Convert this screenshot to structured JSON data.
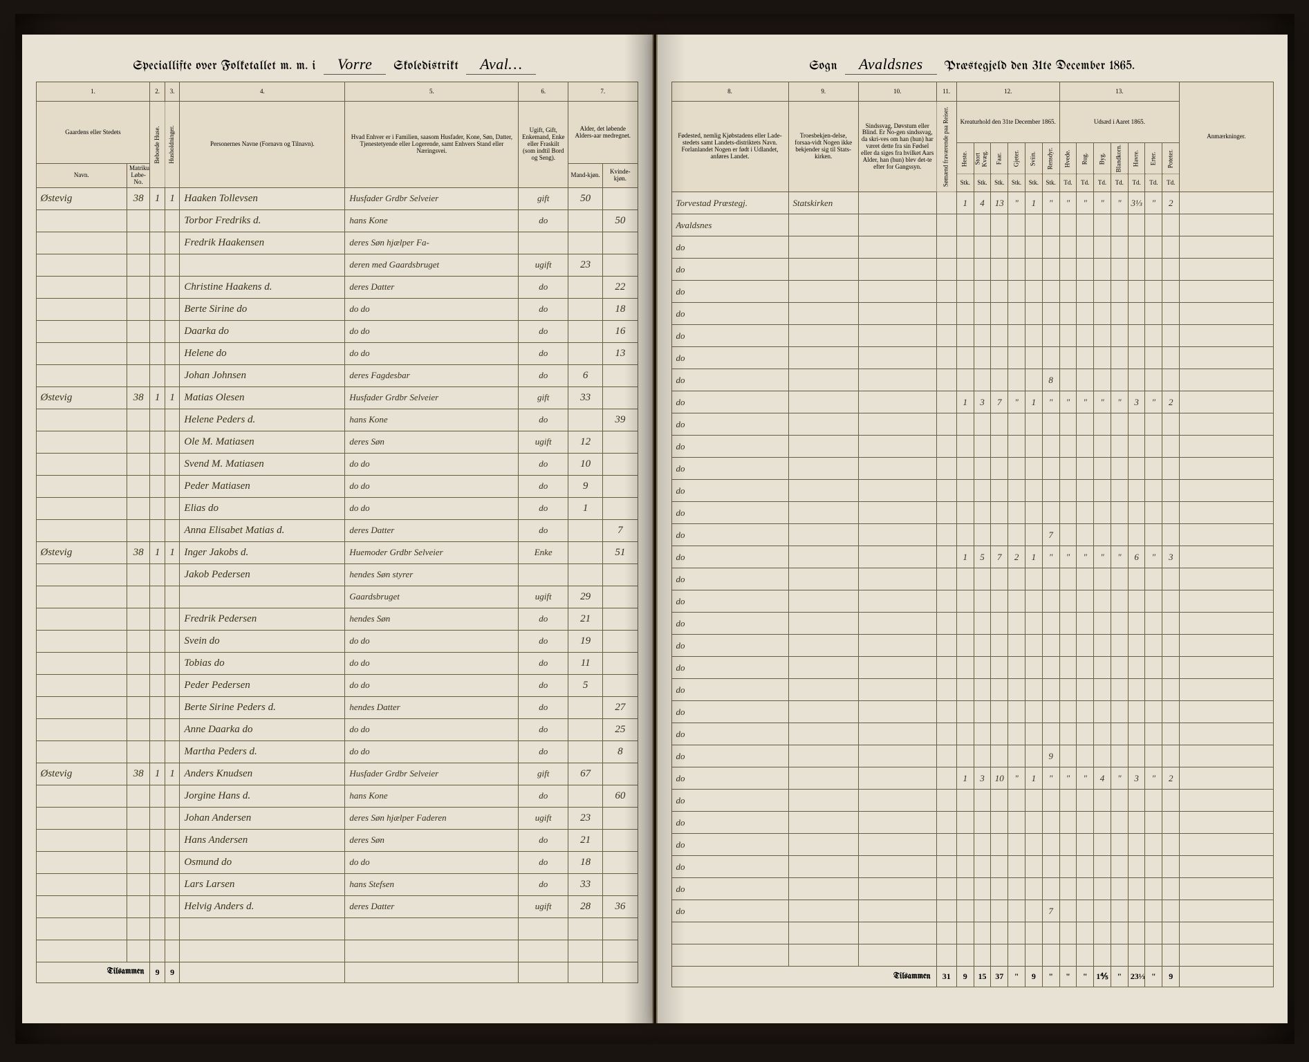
{
  "header": {
    "left_prefix": "Speciallifte over Folketallet m. m. i",
    "district_word": "Skoledistrikt",
    "district_script_left": "Vorre",
    "district_script_mid": "Aval…",
    "sogn_word": "Sogn",
    "sogn_script": "Avaldsnes",
    "right_suffix": "Præstegjeld den 31te December 1865."
  },
  "left_cols": {
    "n1": "1.",
    "n2": "2.",
    "n3": "3.",
    "n4": "4.",
    "n5": "5.",
    "n6": "6.",
    "n7": "7.",
    "h1": "Gaardens eller Stedets",
    "h1a": "Navn.",
    "h1b": "Matrikul-Løbe-No.",
    "h2": "Beboede Huse.",
    "h3": "Husholdninger.",
    "h4": "Personernes Navne (Fornavn og Tilnavn).",
    "h5": "Hvad Enhver er i Familien, saasom Husfader, Kone, Søn, Datter, Tjenestetyende eller Logerende, samt Enhvers Stand eller Næringsvei.",
    "h6": "Ugift, Gift, Enkemand, Enke eller Fraskilt (som indtil Bord og Seng).",
    "h7": "Alder, det løbende Alders-aar medregnet.",
    "h7a": "Mand-kjøn.",
    "h7b": "Kvinde-kjøn."
  },
  "right_cols": {
    "n8": "8.",
    "n9": "9.",
    "n10": "10.",
    "n11": "11.",
    "n12": "12.",
    "n13": "13.",
    "h8": "Fødested, nemlig Kjøbstadens eller Lade-stedets samt Landets-distriktets Navn. Forlanlandet Nogen er født i Udlandet, anføres Landet.",
    "h9": "Troesbekjen-delse, forsaa-vidt Nogen ikke bekjender sig til Stats-kirken.",
    "h10": "Sindssvag, Døvstum eller Blind. Er No-gen sindssvag, da skri-ves om han (hun) har været dette fra sin Fødsel eller da siges fra hvilket Aars Alder, han (hun) blev det-te efter for Gangssyn.",
    "h11": "Sømænd fraværende paa Reiser.",
    "h12": "Kreaturhold den 31te December 1865.",
    "h13": "Udsæd i Aaret 1865.",
    "hA": "Anmærkninger.",
    "k12": [
      "Heste.",
      "Stort Kvæg.",
      "Faar.",
      "Gjeter.",
      "Sviin.",
      "Rensdyr."
    ],
    "k12u": [
      "Stk.",
      "Stk.",
      "Stk.",
      "Stk.",
      "Stk.",
      "Stk."
    ],
    "k13": [
      "Hvede.",
      "Rug.",
      "Byg.",
      "Blandkorn.",
      "Havre.",
      "Erter.",
      "Poteter."
    ],
    "k13u": [
      "Td.",
      "Td.",
      "Td.",
      "Td.",
      "Td.",
      "Td.",
      "Td."
    ]
  },
  "rows": [
    {
      "gaard": "Østevig",
      "mno": "38",
      "hus": "1",
      "hh": "1",
      "navn": "Haaken Tollevsen",
      "fam": "Husfader Grdbr Selveier",
      "civ": "gift",
      "m": "50",
      "k": "",
      "fsted": "Torvestad Præstegj.",
      "tro": "Statskirken",
      "kreat": [
        "1",
        "4",
        "13",
        "\"",
        "1",
        "\""
      ],
      "uds": [
        "\"",
        "\"",
        "\"",
        "\"",
        "3⅓",
        "\"",
        "2"
      ]
    },
    {
      "gaard": "",
      "mno": "",
      "hus": "",
      "hh": "",
      "navn": "Torbor Fredriks d.",
      "fam": "hans Kone",
      "civ": "do",
      "m": "",
      "k": "50",
      "fsted": "Avaldsnes",
      "tro": "",
      "kreat": [],
      "uds": []
    },
    {
      "gaard": "",
      "mno": "",
      "hus": "",
      "hh": "",
      "navn": "Fredrik Haakensen",
      "fam": "deres Søn hjælper Fa-",
      "civ": "",
      "m": "",
      "k": "",
      "fsted": "do",
      "tro": "",
      "kreat": [],
      "uds": []
    },
    {
      "gaard": "",
      "mno": "",
      "hus": "",
      "hh": "",
      "navn": "",
      "fam": "deren med Gaardsbruget",
      "civ": "ugift",
      "m": "23",
      "k": "",
      "fsted": "do",
      "tro": "",
      "kreat": [],
      "uds": []
    },
    {
      "gaard": "",
      "mno": "",
      "hus": "",
      "hh": "",
      "navn": "Christine Haakens d.",
      "fam": "deres Datter",
      "civ": "do",
      "m": "",
      "k": "22",
      "fsted": "do",
      "tro": "",
      "kreat": [],
      "uds": []
    },
    {
      "gaard": "",
      "mno": "",
      "hus": "",
      "hh": "",
      "navn": "Berte Sirine   do",
      "fam": "do      do",
      "civ": "do",
      "m": "",
      "k": "18",
      "fsted": "do",
      "tro": "",
      "kreat": [],
      "uds": []
    },
    {
      "gaard": "",
      "mno": "",
      "hus": "",
      "hh": "",
      "navn": "Daarka        do",
      "fam": "do      do",
      "civ": "do",
      "m": "",
      "k": "16",
      "fsted": "do",
      "tro": "",
      "kreat": [],
      "uds": []
    },
    {
      "gaard": "",
      "mno": "",
      "hus": "",
      "hh": "",
      "navn": "Helene        do",
      "fam": "do      do",
      "civ": "do",
      "m": "",
      "k": "13",
      "fsted": "do",
      "tro": "",
      "kreat": [],
      "uds": []
    },
    {
      "gaard": "",
      "mno": "",
      "hus": "",
      "hh": "",
      "navn": "Johan Johnsen",
      "fam": "deres Fagdesbar",
      "civ": "do",
      "m": "6",
      "k": "",
      "fsted": "do",
      "tro": "",
      "kreat": [
        "",
        "",
        "",
        "",
        "",
        "8"
      ],
      "uds": []
    },
    {
      "gaard": "Østevig",
      "mno": "38",
      "hus": "1",
      "hh": "1",
      "navn": "Matias Olesen",
      "fam": "Husfader Grdbr Selveier",
      "civ": "gift",
      "m": "33",
      "k": "",
      "fsted": "do",
      "tro": "",
      "kreat": [
        "1",
        "3",
        "7",
        "\"",
        "1",
        "\""
      ],
      "uds": [
        "\"",
        "\"",
        "\"",
        "\"",
        "3",
        "\"",
        "2"
      ]
    },
    {
      "gaard": "",
      "mno": "",
      "hus": "",
      "hh": "",
      "navn": "Helene Peders d.",
      "fam": "hans Kone",
      "civ": "do",
      "m": "",
      "k": "39",
      "fsted": "do",
      "tro": "",
      "kreat": [],
      "uds": []
    },
    {
      "gaard": "",
      "mno": "",
      "hus": "",
      "hh": "",
      "navn": "Ole M. Matiasen",
      "fam": "deres Søn",
      "civ": "ugift",
      "m": "12",
      "k": "",
      "fsted": "do",
      "tro": "",
      "kreat": [],
      "uds": []
    },
    {
      "gaard": "",
      "mno": "",
      "hus": "",
      "hh": "",
      "navn": "Svend M. Matiasen",
      "fam": "do      do",
      "civ": "do",
      "m": "10",
      "k": "",
      "fsted": "do",
      "tro": "",
      "kreat": [],
      "uds": []
    },
    {
      "gaard": "",
      "mno": "",
      "hus": "",
      "hh": "",
      "navn": "Peder Matiasen",
      "fam": "do      do",
      "civ": "do",
      "m": "9",
      "k": "",
      "fsted": "do",
      "tro": "",
      "kreat": [],
      "uds": []
    },
    {
      "gaard": "",
      "mno": "",
      "hus": "",
      "hh": "",
      "navn": "Elias      do",
      "fam": "do      do",
      "civ": "do",
      "m": "1",
      "k": "",
      "fsted": "do",
      "tro": "",
      "kreat": [],
      "uds": []
    },
    {
      "gaard": "",
      "mno": "",
      "hus": "",
      "hh": "",
      "navn": "Anna Elisabet Matias d.",
      "fam": "deres Datter",
      "civ": "do",
      "m": "",
      "k": "7",
      "fsted": "do",
      "tro": "",
      "kreat": [
        "",
        "",
        "",
        "",
        "",
        "7"
      ],
      "uds": []
    },
    {
      "gaard": "Østevig",
      "mno": "38",
      "hus": "1",
      "hh": "1",
      "navn": "Inger Jakobs d.",
      "fam": "Huemoder Grdbr Selveier",
      "civ": "Enke",
      "m": "",
      "k": "51",
      "fsted": "do",
      "tro": "",
      "kreat": [
        "1",
        "5",
        "7",
        "2",
        "1",
        "\""
      ],
      "uds": [
        "\"",
        "\"",
        "\"",
        "\"",
        "6",
        "\"",
        "3"
      ]
    },
    {
      "gaard": "",
      "mno": "",
      "hus": "",
      "hh": "",
      "navn": "Jakob Pedersen",
      "fam": "hendes Søn styrer",
      "civ": "",
      "m": "",
      "k": "",
      "fsted": "do",
      "tro": "",
      "kreat": [],
      "uds": []
    },
    {
      "gaard": "",
      "mno": "",
      "hus": "",
      "hh": "",
      "navn": "",
      "fam": "Gaardsbruget",
      "civ": "ugift",
      "m": "29",
      "k": "",
      "fsted": "do",
      "tro": "",
      "kreat": [],
      "uds": []
    },
    {
      "gaard": "",
      "mno": "",
      "hus": "",
      "hh": "",
      "navn": "Fredrik Pedersen",
      "fam": "hendes Søn",
      "civ": "do",
      "m": "21",
      "k": "",
      "fsted": "do",
      "tro": "",
      "kreat": [],
      "uds": []
    },
    {
      "gaard": "",
      "mno": "",
      "hus": "",
      "hh": "",
      "navn": "Svein      do",
      "fam": "do      do",
      "civ": "do",
      "m": "19",
      "k": "",
      "fsted": "do",
      "tro": "",
      "kreat": [],
      "uds": []
    },
    {
      "gaard": "",
      "mno": "",
      "hus": "",
      "hh": "",
      "navn": "Tobias     do",
      "fam": "do      do",
      "civ": "do",
      "m": "11",
      "k": "",
      "fsted": "do",
      "tro": "",
      "kreat": [],
      "uds": []
    },
    {
      "gaard": "",
      "mno": "",
      "hus": "",
      "hh": "",
      "navn": "Peder Pedersen",
      "fam": "do      do",
      "civ": "do",
      "m": "5",
      "k": "",
      "fsted": "do",
      "tro": "",
      "kreat": [],
      "uds": []
    },
    {
      "gaard": "",
      "mno": "",
      "hus": "",
      "hh": "",
      "navn": "Berte Sirine Peders d.",
      "fam": "hendes Datter",
      "civ": "do",
      "m": "",
      "k": "27",
      "fsted": "do",
      "tro": "",
      "kreat": [],
      "uds": []
    },
    {
      "gaard": "",
      "mno": "",
      "hus": "",
      "hh": "",
      "navn": "Anne Daarka   do",
      "fam": "do      do",
      "civ": "do",
      "m": "",
      "k": "25",
      "fsted": "do",
      "tro": "",
      "kreat": [],
      "uds": []
    },
    {
      "gaard": "",
      "mno": "",
      "hus": "",
      "hh": "",
      "navn": "Martha Peders d.",
      "fam": "do      do",
      "civ": "do",
      "m": "",
      "k": "8",
      "fsted": "do",
      "tro": "",
      "kreat": [
        "",
        "",
        "",
        "",
        "",
        "9"
      ],
      "uds": []
    },
    {
      "gaard": "Østevig",
      "mno": "38",
      "hus": "1",
      "hh": "1",
      "navn": "Anders Knudsen",
      "fam": "Husfader Grdbr Selveier",
      "civ": "gift",
      "m": "67",
      "k": "",
      "fsted": "do",
      "tro": "",
      "kreat": [
        "1",
        "3",
        "10",
        "\"",
        "1",
        "\""
      ],
      "uds": [
        "\"",
        "\"",
        "4",
        "\"",
        "3",
        "\"",
        "2"
      ]
    },
    {
      "gaard": "",
      "mno": "",
      "hus": "",
      "hh": "",
      "navn": "Jorgine Hans d.",
      "fam": "hans Kone",
      "civ": "do",
      "m": "",
      "k": "60",
      "fsted": "do",
      "tro": "",
      "kreat": [],
      "uds": []
    },
    {
      "gaard": "",
      "mno": "",
      "hus": "",
      "hh": "",
      "navn": "Johan Andersen",
      "fam": "deres Søn hjælper Faderen",
      "civ": "ugift",
      "m": "23",
      "k": "",
      "fsted": "do",
      "tro": "",
      "kreat": [],
      "uds": []
    },
    {
      "gaard": "",
      "mno": "",
      "hus": "",
      "hh": "",
      "navn": "Hans Andersen",
      "fam": "deres Søn",
      "civ": "do",
      "m": "21",
      "k": "",
      "fsted": "do",
      "tro": "",
      "kreat": [],
      "uds": []
    },
    {
      "gaard": "",
      "mno": "",
      "hus": "",
      "hh": "",
      "navn": "Osmund    do",
      "fam": "do      do",
      "civ": "do",
      "m": "18",
      "k": "",
      "fsted": "do",
      "tro": "",
      "kreat": [],
      "uds": []
    },
    {
      "gaard": "",
      "mno": "",
      "hus": "",
      "hh": "",
      "navn": "Lars Larsen",
      "fam": "hans Stefsen",
      "civ": "do",
      "m": "33",
      "k": "",
      "fsted": "do",
      "tro": "",
      "kreat": [],
      "uds": []
    },
    {
      "gaard": "",
      "mno": "",
      "hus": "",
      "hh": "",
      "navn": "Helvig Anders d.",
      "fam": "deres Datter",
      "civ": "ugift",
      "m": "28",
      "k": "36",
      "fsted": "do",
      "tro": "",
      "kreat": [
        "",
        "",
        "",
        "",
        "",
        "7"
      ],
      "uds": []
    }
  ],
  "empty_rows": 2,
  "footer": {
    "label": "Tilsammen",
    "left": {
      "hus": "9",
      "hh": "9"
    },
    "right": {
      "som": "31",
      "kreat": [
        "9",
        "15",
        "37",
        "\"",
        "9",
        "\""
      ],
      "uds": [
        "\"",
        "\"",
        "1⅘",
        "\"",
        "23⅓",
        "\"",
        "9"
      ]
    }
  }
}
